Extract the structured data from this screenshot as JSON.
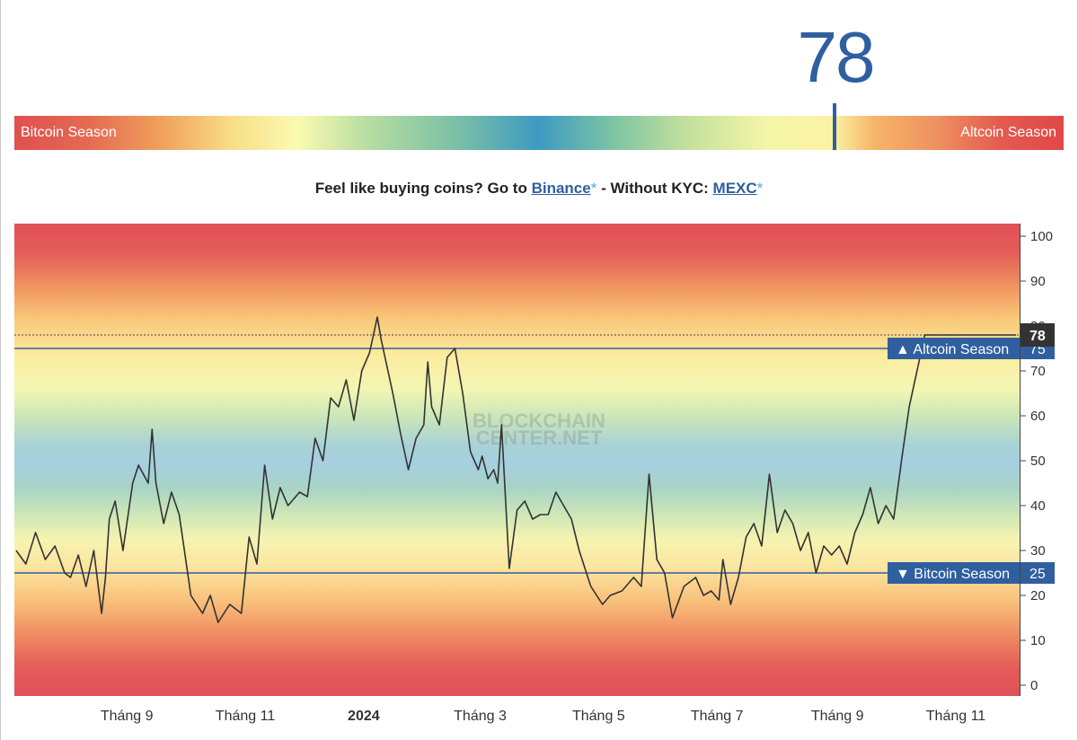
{
  "gauge": {
    "current_value": "78",
    "left_label": "Bitcoin Season",
    "right_label": "Altcoin Season"
  },
  "promo": {
    "text1": "Feel like buying coins? Go to ",
    "link1": "Binance",
    "star": "*",
    "text2": " - Without KYC: ",
    "link2": "MEXC"
  },
  "watermark": [
    "BLOCKCHAIN",
    "CENTER.NET"
  ],
  "colors": {
    "accent": "#2f5f9f",
    "line": "#333333",
    "season_red": "#e05050",
    "season_blue": "#3e9ac2"
  },
  "chart_data": {
    "type": "line",
    "title": "",
    "xlabel": "",
    "ylabel": "",
    "ylim": [
      0,
      100
    ],
    "y_ticks": [
      0,
      10,
      20,
      30,
      40,
      50,
      60,
      70,
      80,
      90,
      100
    ],
    "x_ticks": [
      "Tháng 9",
      "Tháng 11",
      "2024",
      "Tháng 3",
      "Tháng 5",
      "Tháng 7",
      "Tháng 9",
      "Tháng 11"
    ],
    "x_tick_day": [
      57,
      118,
      179,
      239,
      300,
      361,
      423,
      484
    ],
    "thresholds": [
      {
        "name": "Altcoin Season",
        "value": 75,
        "marker": "▲"
      },
      {
        "name": "Bitcoin Season",
        "value": 25,
        "marker": "▼"
      }
    ],
    "current": {
      "value": 78,
      "label": "78"
    },
    "series": [
      {
        "name": "Altcoin Season Index",
        "x_day": [
          0,
          5,
          10,
          15,
          20,
          25,
          28,
          32,
          36,
          40,
          44,
          46,
          48,
          51,
          55,
          60,
          63,
          68,
          70,
          72,
          76,
          80,
          84,
          90,
          96,
          100,
          104,
          110,
          116,
          120,
          124,
          128,
          132,
          136,
          140,
          146,
          150,
          154,
          158,
          162,
          166,
          170,
          174,
          178,
          182,
          184,
          186,
          188,
          190,
          194,
          198,
          202,
          206,
          210,
          212,
          214,
          218,
          222,
          226,
          230,
          234,
          238,
          240,
          243,
          246,
          248,
          250,
          254,
          258,
          262,
          266,
          270,
          274,
          278,
          282,
          286,
          290,
          296,
          302,
          306,
          312,
          318,
          322,
          326,
          330,
          334,
          338,
          344,
          350,
          354,
          358,
          362,
          364,
          368,
          372,
          376,
          380,
          384,
          388,
          392,
          396,
          400,
          404,
          408,
          412,
          416,
          420,
          424,
          428,
          432,
          436,
          440,
          444,
          448,
          452,
          456,
          460,
          464,
          468,
          472,
          476,
          480,
          484,
          488,
          492,
          496,
          500,
          504,
          506,
          508,
          510,
          512,
          514,
          515
        ],
        "values": [
          30,
          27,
          34,
          28,
          31,
          25,
          24,
          29,
          22,
          30,
          16,
          24,
          37,
          41,
          30,
          45,
          49,
          45,
          57,
          45,
          36,
          43,
          38,
          20,
          16,
          20,
          14,
          18,
          16,
          33,
          27,
          49,
          37,
          44,
          40,
          43,
          42,
          55,
          50,
          64,
          62,
          68,
          59,
          70,
          74,
          78,
          82,
          77,
          73,
          65,
          56,
          48,
          55,
          58,
          72,
          62,
          58,
          73,
          75,
          65,
          52,
          48,
          51,
          46,
          48,
          45,
          58,
          26,
          39,
          41,
          37,
          38,
          38,
          43,
          40,
          37,
          30,
          22,
          18,
          20,
          21,
          24,
          22,
          47,
          28,
          25,
          15,
          22,
          24,
          20,
          21,
          19,
          28,
          18,
          24,
          33,
          36,
          31,
          47,
          34,
          39,
          36,
          30,
          34,
          25,
          31,
          29,
          31,
          27,
          34,
          38,
          44,
          36,
          40,
          37,
          50,
          62,
          70,
          78,
          78,
          78,
          78,
          78,
          78,
          78,
          78,
          78,
          78,
          78,
          78,
          78,
          78,
          78,
          78
        ]
      }
    ]
  }
}
